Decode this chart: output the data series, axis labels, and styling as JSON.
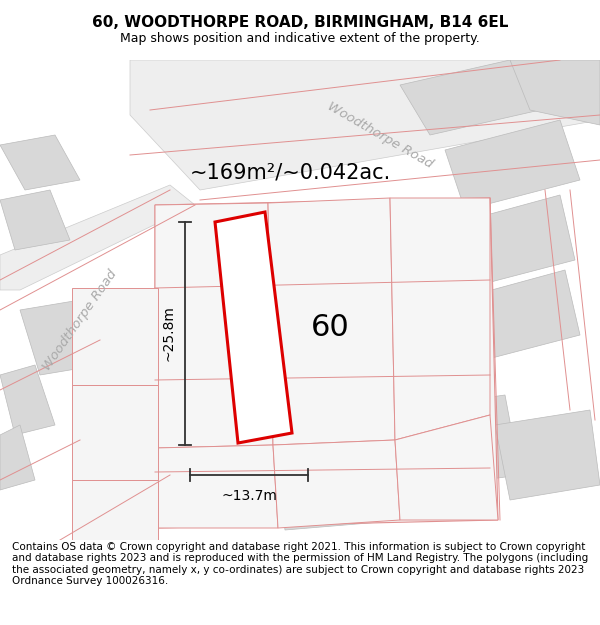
{
  "title": "60, WOODTHORPE ROAD, BIRMINGHAM, B14 6EL",
  "subtitle": "Map shows position and indicative extent of the property.",
  "area_label": "~169m²/~0.042ac.",
  "width_label": "~13.7m",
  "height_label": "~25.8m",
  "number_label": "60",
  "footer": "Contains OS data © Crown copyright and database right 2021. This information is subject to Crown copyright and database rights 2023 and is reproduced with the permission of HM Land Registry. The polygons (including the associated geometry, namely x, y co-ordinates) are subject to Crown copyright and database rights 2023 Ordnance Survey 100026316.",
  "bg_color": "#ffffff",
  "parcel_fill": "#d8d8d8",
  "pink_line_color": "#e09090",
  "red_parcel_color": "#dd0000",
  "dim_line_color": "#333333",
  "road_label_color": "#aaaaaa",
  "title_fontsize": 11,
  "subtitle_fontsize": 9,
  "footer_fontsize": 7.5,
  "road_label_1": "Woodthorpe Road",
  "road_label_2": "Woodthorpe Road",
  "road_label_rotation_1": 55,
  "road_label_rotation_2": -30
}
